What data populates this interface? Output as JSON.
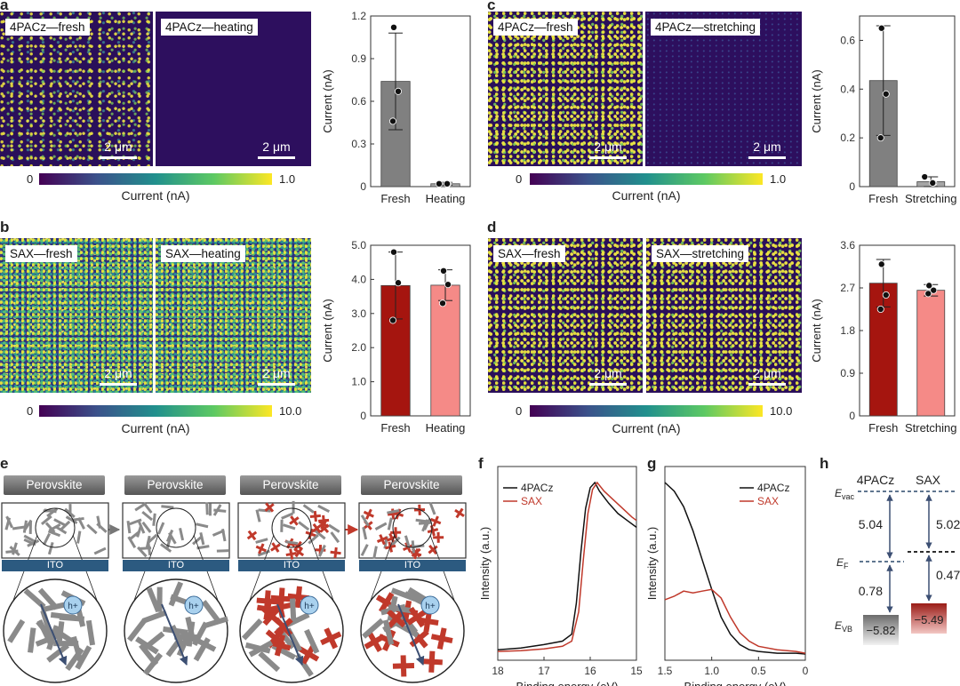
{
  "panels": {
    "a": {
      "letter": "a",
      "map1": "4PACz—fresh",
      "map2": "4PACz—heating",
      "scalebar": "2 μm",
      "cbar_min": "0",
      "cbar_max": "1.0",
      "cbar_title": "Current (nA)"
    },
    "b": {
      "letter": "b",
      "map1": "SAX—fresh",
      "map2": "SAX—heating",
      "scalebar": "2 μm",
      "cbar_min": "0",
      "cbar_max": "10.0",
      "cbar_title": "Current (nA)"
    },
    "c": {
      "letter": "c",
      "map1": "4PACz—fresh",
      "map2": "4PACz—stretching",
      "scalebar": "2 μm",
      "cbar_min": "0",
      "cbar_max": "1.0",
      "cbar_title": "Current (nA)"
    },
    "d": {
      "letter": "d",
      "map1": "SAX—fresh",
      "map2": "SAX—stretching",
      "scalebar": "2 μm",
      "cbar_min": "0",
      "cbar_max": "10.0",
      "cbar_title": "Current (nA)"
    },
    "e": {
      "letter": "e",
      "perovskite": "Perovskite",
      "ito": "ITO",
      "hole": "h+"
    },
    "f": {
      "letter": "f"
    },
    "g": {
      "letter": "g"
    },
    "h": {
      "letter": "h"
    }
  },
  "chart_data": [
    {
      "id": "a",
      "type": "bar",
      "ylabel": "Current (nA)",
      "categories": [
        "Fresh",
        "Heating"
      ],
      "values": [
        0.74,
        0.02
      ],
      "errors": [
        0.34,
        0.01
      ],
      "ylim": [
        0,
        1.2
      ],
      "yticks": [
        "0",
        "0.3",
        "0.6",
        "0.9",
        "1.2"
      ],
      "points": [
        [
          1.12,
          0.67,
          0.46
        ],
        [
          0.02,
          0.02,
          0.02
        ]
      ],
      "colors": [
        "#808080",
        "#a6a6a6"
      ]
    },
    {
      "id": "b",
      "type": "bar",
      "ylabel": "Current (nA)",
      "categories": [
        "Fresh",
        "Heating"
      ],
      "values": [
        3.82,
        3.83
      ],
      "errors": [
        0.98,
        0.45
      ],
      "ylim": [
        0,
        5.0
      ],
      "yticks": [
        "0",
        "1.0",
        "2.0",
        "3.0",
        "4.0",
        "5.0"
      ],
      "points": [
        [
          4.8,
          3.9,
          2.8
        ],
        [
          4.25,
          3.85,
          3.3
        ]
      ],
      "colors": [
        "#a5150f",
        "#f58a87"
      ]
    },
    {
      "id": "c",
      "type": "bar",
      "ylabel": "Current (nA)",
      "categories": [
        "Fresh",
        "Stretching"
      ],
      "values": [
        0.435,
        0.02
      ],
      "errors": [
        0.225,
        0.02
      ],
      "ylim": [
        0,
        0.7
      ],
      "yticks": [
        "0",
        "0.2",
        "0.4",
        "0.6"
      ],
      "points": [
        [
          0.65,
          0.38,
          0.2
        ],
        [
          0.04,
          0.015,
          0.015
        ]
      ],
      "colors": [
        "#808080",
        "#a6a6a6"
      ]
    },
    {
      "id": "d",
      "type": "bar",
      "ylabel": "Current (nA)",
      "categories": [
        "Fresh",
        "Stretching"
      ],
      "values": [
        2.8,
        2.65
      ],
      "errors": [
        0.5,
        0.12
      ],
      "ylim": [
        0,
        3.6
      ],
      "yticks": [
        "0",
        "0.9",
        "1.8",
        "2.7",
        "3.6"
      ],
      "points": [
        [
          3.2,
          2.55,
          2.25
        ],
        [
          2.75,
          2.65,
          2.58
        ]
      ],
      "colors": [
        "#a5150f",
        "#f58a87"
      ]
    },
    {
      "id": "f",
      "type": "line",
      "xlabel": "Binding energy (eV)",
      "ylabel": "Intensity (a.u.)",
      "xlim": [
        18,
        15
      ],
      "xticks": [
        "18",
        "17",
        "16",
        "15"
      ],
      "legend": [
        "4PACz",
        "SAX"
      ],
      "series": [
        {
          "name": "4PACz",
          "color": "#111111",
          "x": [
            18,
            17.5,
            17,
            16.6,
            16.4,
            16.3,
            16.2,
            16.1,
            16.0,
            15.9,
            15.8,
            15.6,
            15.4,
            15.2,
            15.0
          ],
          "y": [
            0.03,
            0.04,
            0.06,
            0.08,
            0.12,
            0.3,
            0.6,
            0.85,
            0.97,
            1.0,
            0.95,
            0.88,
            0.82,
            0.78,
            0.74
          ]
        },
        {
          "name": "SAX",
          "color": "#c0392b",
          "x": [
            18,
            17.5,
            17,
            16.6,
            16.4,
            16.25,
            16.15,
            16.05,
            15.95,
            15.85,
            15.7,
            15.5,
            15.3,
            15.1,
            15.0
          ],
          "y": [
            0.02,
            0.025,
            0.035,
            0.05,
            0.08,
            0.25,
            0.55,
            0.82,
            0.96,
            1.0,
            0.95,
            0.9,
            0.85,
            0.8,
            0.78
          ]
        }
      ]
    },
    {
      "id": "g",
      "type": "line",
      "xlabel": "Binding energy (eV)",
      "ylabel": "Intensity (a.u.)",
      "xlim": [
        1.5,
        0
      ],
      "xticks": [
        "1.5",
        "1.0",
        "0.5",
        "0"
      ],
      "legend": [
        "4PACz",
        "SAX"
      ],
      "series": [
        {
          "name": "4PACz",
          "color": "#111111",
          "x": [
            1.5,
            1.4,
            1.3,
            1.2,
            1.1,
            1.0,
            0.9,
            0.8,
            0.7,
            0.6,
            0.5,
            0.3,
            0.1,
            0.0
          ],
          "y": [
            1.0,
            0.95,
            0.86,
            0.72,
            0.55,
            0.38,
            0.22,
            0.12,
            0.06,
            0.03,
            0.02,
            0.01,
            0.01,
            0.005
          ]
        },
        {
          "name": "SAX",
          "color": "#c0392b",
          "x": [
            1.5,
            1.4,
            1.3,
            1.2,
            1.1,
            1.0,
            0.9,
            0.8,
            0.7,
            0.6,
            0.5,
            0.3,
            0.1,
            0.0
          ],
          "y": [
            0.32,
            0.34,
            0.37,
            0.36,
            0.37,
            0.38,
            0.33,
            0.22,
            0.13,
            0.08,
            0.05,
            0.03,
            0.02,
            0.01
          ]
        }
      ]
    },
    {
      "id": "h",
      "type": "diagram",
      "labels": {
        "col1": "4PACz",
        "col2": "SAX",
        "evac": "E",
        "evac_sub": "vac",
        "ef": "E",
        "ef_sub": "F",
        "evb": "E",
        "evb_sub": "VB"
      },
      "values": {
        "wf1": "5.04",
        "wf2": "5.02",
        "gap1": "0.78",
        "gap2": "0.47",
        "vb1": "−5.82",
        "vb2": "−5.49"
      }
    }
  ]
}
